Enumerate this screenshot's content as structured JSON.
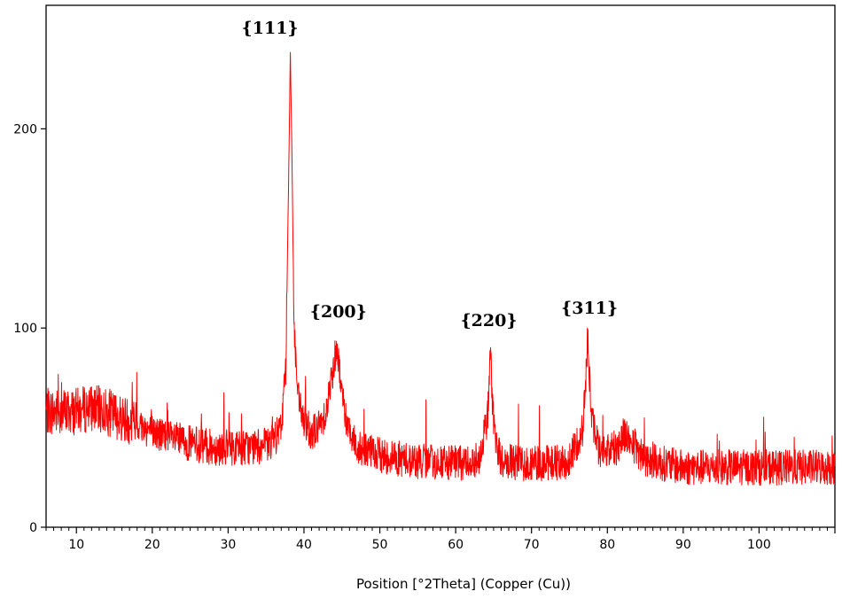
{
  "chart_data": {
    "type": "line",
    "title": "",
    "xlabel": "Position [°2Theta] (Copper (Cu))",
    "ylabel": "",
    "xlim": [
      6,
      110
    ],
    "ylim": [
      0,
      262
    ],
    "x_ticks": [
      10,
      20,
      30,
      40,
      50,
      60,
      70,
      80,
      90,
      100
    ],
    "y_ticks": [
      0,
      100,
      200
    ],
    "grid": false,
    "legend": "none",
    "series": [
      {
        "color": "#ff0000",
        "x": [
          6,
          8,
          10,
          12,
          14,
          16,
          18,
          20,
          22,
          25,
          28,
          30,
          33,
          35,
          36,
          37,
          37.6,
          38.0,
          38.2,
          38.4,
          38.7,
          39.2,
          40,
          41,
          42,
          43,
          43.8,
          44.3,
          44.8,
          45.5,
          47,
          50,
          55,
          60,
          63,
          64.2,
          64.6,
          65.0,
          66,
          70,
          75,
          76.8,
          77.4,
          77.9,
          79,
          81.5,
          82,
          85,
          90,
          95,
          100,
          105,
          110
        ],
        "values": [
          58,
          58,
          58,
          60,
          58,
          55,
          52,
          48,
          45,
          42,
          40,
          40,
          40,
          41,
          43,
          50,
          80,
          180,
          240,
          190,
          100,
          65,
          52,
          48,
          50,
          60,
          78,
          92,
          75,
          55,
          40,
          36,
          33,
          32,
          34,
          55,
          88,
          50,
          33,
          32,
          33,
          50,
          95,
          55,
          38,
          40,
          48,
          34,
          30,
          30,
          30,
          30,
          30
        ]
      }
    ],
    "annotations": [
      {
        "text": "{111}",
        "x": 38.2
      },
      {
        "text": "{200}",
        "x": 44.3
      },
      {
        "text": "{220}",
        "x": 64.6
      },
      {
        "text": "{311}",
        "x": 77.4
      }
    ]
  }
}
